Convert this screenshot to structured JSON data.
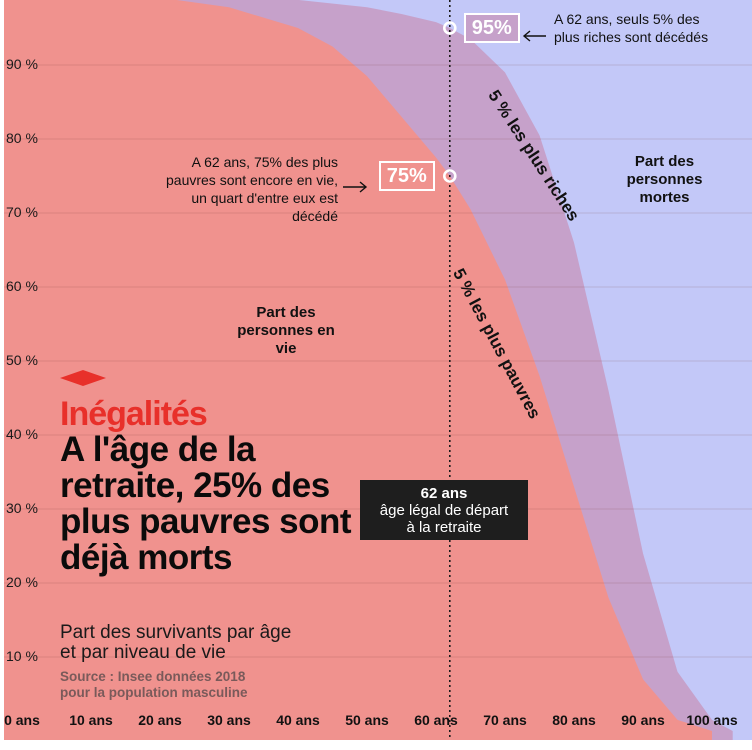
{
  "chart_data": {
    "type": "area",
    "title": "A l'âge de la retraite, 25% des plus pauvres sont déjà morts",
    "kicker": "Inégalités",
    "subtitle": "Part des survivants par âge et par niveau de vie",
    "source": "Source : Insee données 2018 pour la population masculine",
    "x_ticks": [
      "0 ans",
      "10 ans",
      "20 ans",
      "30 ans",
      "40 ans",
      "50 ans",
      "60 ans",
      "70 ans",
      "80 ans",
      "90 ans",
      "100 ans"
    ],
    "y_ticks": [
      "10 %",
      "20 %",
      "30 %",
      "40 %",
      "50 %",
      "60 %",
      "70 %",
      "80 %",
      "90 %"
    ],
    "xlim": [
      0,
      103
    ],
    "ylim": [
      0,
      100
    ],
    "series": [
      {
        "name": "5 % les plus riches",
        "x": [
          0,
          10,
          20,
          30,
          40,
          50,
          55,
          60,
          62,
          65,
          70,
          75,
          80,
          85,
          90,
          95,
          100,
          103
        ],
        "values": [
          100,
          99.9,
          99.7,
          99.3,
          98.8,
          97.8,
          96.9,
          95.8,
          95,
          93.5,
          89,
          80.5,
          66,
          46,
          24,
          8,
          1.5,
          0
        ]
      },
      {
        "name": "5 % les plus pauvres",
        "x": [
          0,
          10,
          20,
          30,
          40,
          45,
          50,
          55,
          60,
          62,
          65,
          70,
          75,
          80,
          85,
          90,
          95,
          100
        ],
        "values": [
          100,
          99.6,
          99.1,
          97.8,
          95,
          92.5,
          88.5,
          83,
          77.5,
          75,
          70.5,
          61,
          48,
          33,
          18,
          7,
          1.5,
          0
        ]
      }
    ],
    "colors": {
      "alive_poor": "#f0928e",
      "rich_band": "#c6a1ca",
      "dead": "#c3c8f8",
      "accent": "#e8302a"
    },
    "retirement": {
      "age": 62,
      "label_bold": "62 ans",
      "label": "âge légal de départ à la retraite"
    },
    "markers": [
      {
        "age": 62,
        "value": 95,
        "badge": "95%"
      },
      {
        "age": 62,
        "value": 75,
        "badge": "75%"
      }
    ],
    "annotations": {
      "rich": "A 62 ans, seuls 5% des plus riches sont décédés",
      "poor": "A 62 ans, 75% des plus pauvres sont encore en vie, un quart d'entre eux est décédé"
    },
    "region_labels": {
      "alive": "Part des personnes en vie",
      "dead": "Part des personnes mortes"
    }
  }
}
